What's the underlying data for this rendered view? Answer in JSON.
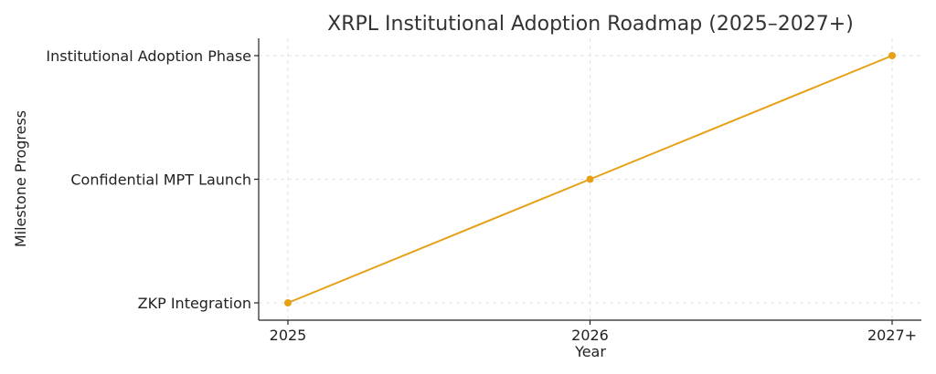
{
  "chart_data": {
    "type": "line",
    "title": "XRPL Institutional Adoption Roadmap (2025–2027+)",
    "xlabel": "Year",
    "ylabel": "Milestone Progress",
    "categories": [
      "2025",
      "2026",
      "2027+"
    ],
    "y_categories": [
      "ZKP Integration",
      "Confidential MPT Launch",
      "Institutional Adoption Phase"
    ],
    "series": [
      {
        "values": [
          0,
          1,
          2
        ],
        "color": "#e6a117"
      }
    ],
    "ylim": [
      0,
      2
    ],
    "grid": true,
    "legend": "none"
  }
}
